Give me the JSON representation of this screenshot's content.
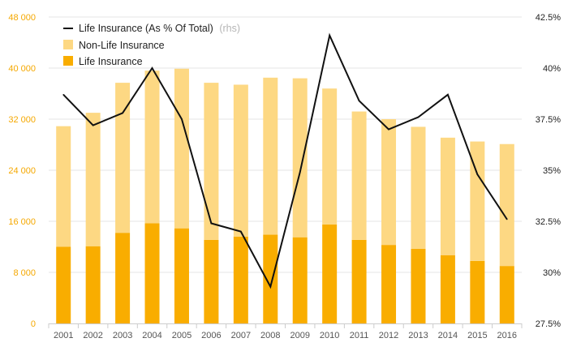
{
  "chart_data": {
    "type": "bar",
    "stacked": true,
    "categories": [
      "2001",
      "2002",
      "2003",
      "2004",
      "2005",
      "2006",
      "2007",
      "2008",
      "2009",
      "2010",
      "2011",
      "2012",
      "2013",
      "2014",
      "2015",
      "2016"
    ],
    "series": [
      {
        "name": "Life Insurance",
        "axis": "left",
        "color": "#f9ad00",
        "values": [
          12000,
          12100,
          14200,
          15700,
          14900,
          13100,
          13600,
          13900,
          13500,
          15500,
          13100,
          12300,
          11700,
          10700,
          9800,
          9000
        ]
      },
      {
        "name": "Non-Life Insurance",
        "axis": "left",
        "color": "#fdd883",
        "values": [
          18900,
          20900,
          23500,
          23900,
          25000,
          24600,
          23800,
          24600,
          24900,
          21300,
          20100,
          19700,
          19100,
          18400,
          18700,
          19100
        ]
      },
      {
        "name": "Life Insurance (As % Of Total)",
        "axis_note": "(rhs)",
        "axis": "right",
        "type": "line",
        "color": "#111111",
        "values": [
          38.7,
          37.2,
          37.8,
          40.0,
          37.5,
          32.4,
          32.0,
          29.3,
          34.9,
          41.6,
          38.4,
          37.0,
          37.6,
          38.7,
          34.8,
          32.6
        ]
      }
    ],
    "y_left": {
      "lim": [
        0,
        48000
      ],
      "ticks": [
        0,
        8000,
        16000,
        24000,
        32000,
        40000,
        48000
      ],
      "tick_labels": [
        "0",
        "8 000",
        "16 000",
        "24 000",
        "32 000",
        "40 000",
        "48 000"
      ],
      "tick_color": "#f5a800"
    },
    "y_right": {
      "lim": [
        27.5,
        42.5
      ],
      "ticks": [
        27.5,
        30,
        32.5,
        35,
        37.5,
        40,
        42.5
      ],
      "tick_labels": [
        "27.5%",
        "30%",
        "32.5%",
        "35%",
        "37.5%",
        "40%",
        "42.5%"
      ],
      "tick_color": "#222222"
    },
    "grid": true,
    "legend_position": "top-left",
    "title": "",
    "xlabel": "",
    "ylabel": ""
  }
}
